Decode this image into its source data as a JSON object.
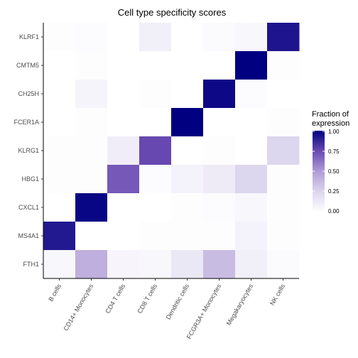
{
  "chart_data": {
    "type": "heatmap",
    "title": "Cell type specificity scores",
    "xlabel": "",
    "ylabel": "",
    "x_categories": [
      "B cells",
      "CD14+ Monocytes",
      "CD4 T cells",
      "CD8 T cells",
      "Dendritic cells",
      "FCGR3A+ Monocytes",
      "Megakaryocytes",
      "NK cells"
    ],
    "y_categories": [
      "KLRF1",
      "CMTM5",
      "CH25H",
      "FCER1A",
      "KLRG1",
      "HBG1",
      "CXCL1",
      "MS4A1",
      "FTH1"
    ],
    "values": [
      [
        0.01,
        0.02,
        0.0,
        0.1,
        0.0,
        0.03,
        0.05,
        0.93
      ],
      [
        0.0,
        0.01,
        0.0,
        0.0,
        0.0,
        0.0,
        1.0,
        0.01
      ],
      [
        0.0,
        0.07,
        0.0,
        0.01,
        0.0,
        0.97,
        0.02,
        0.0
      ],
      [
        0.0,
        0.01,
        0.0,
        0.0,
        1.0,
        0.0,
        0.0,
        0.01
      ],
      [
        0.01,
        0.01,
        0.11,
        0.76,
        0.0,
        0.01,
        0.0,
        0.25
      ],
      [
        0.01,
        0.01,
        0.71,
        0.02,
        0.08,
        0.12,
        0.25,
        0.01
      ],
      [
        0.0,
        0.98,
        0.0,
        0.0,
        0.01,
        0.02,
        0.05,
        0.01
      ],
      [
        0.92,
        0.0,
        0.0,
        0.01,
        0.01,
        0.01,
        0.08,
        0.01
      ],
      [
        0.05,
        0.42,
        0.06,
        0.05,
        0.14,
        0.36,
        0.1,
        0.03
      ]
    ],
    "color_range": [
      0,
      1
    ],
    "color_low": "#ffffff",
    "color_high": "#000080",
    "grid": false,
    "legend": {
      "title": "Fraction of expression",
      "title_lines": [
        "Fraction of",
        "expression"
      ],
      "placement": "right",
      "ticks": [
        "1.00",
        "0.75",
        "0.50",
        "0.25",
        "0.00"
      ],
      "tick_values": [
        1.0,
        0.75,
        0.5,
        0.25,
        0.0
      ]
    }
  }
}
